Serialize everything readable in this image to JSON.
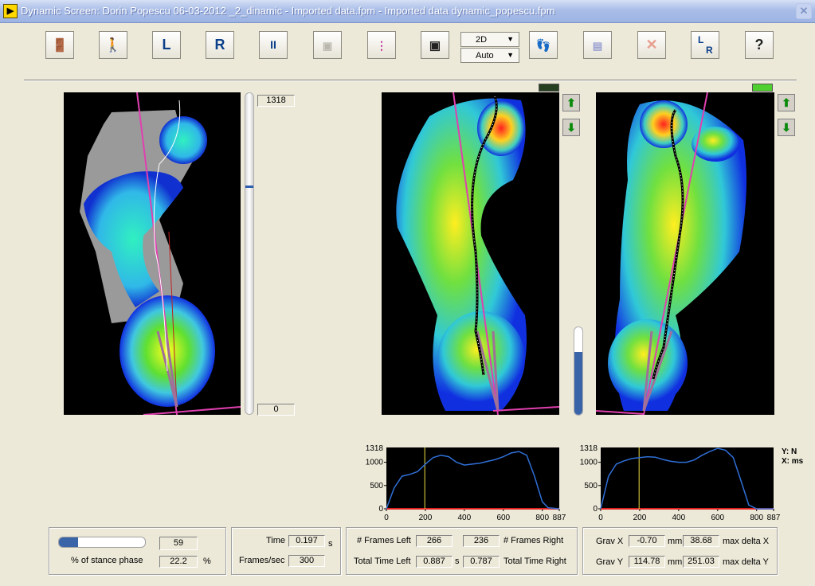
{
  "window": {
    "title": "Dynamic Screen: Dorin Popescu 06-03-2012 _2_dinamic - Imported data.fpm - Imported data dynamic_popescu.fpm"
  },
  "toolbar": {
    "exit_icon": "exit-door-icon",
    "walk_icon": "walking-person-icon",
    "left_label": "L",
    "right_label": "R",
    "pause_label": "II",
    "view_mode": "2D",
    "scale_mode": "Auto",
    "lr_label_l": "L",
    "lr_label_r": "R",
    "help_label": "?"
  },
  "slider": {
    "max_value": "1318",
    "min_value": "0"
  },
  "charts": {
    "left": {
      "ymax_label": "1318",
      "ticks_y": [
        "1000",
        "500",
        "0"
      ],
      "ticks_x": [
        "0",
        "200",
        "400",
        "600",
        "800",
        "887"
      ]
    },
    "right": {
      "ymax_label": "1318",
      "ticks_y": [
        "1000",
        "500",
        "0"
      ],
      "ticks_x": [
        "0",
        "200",
        "400",
        "600",
        "800",
        "887"
      ]
    },
    "axis_legend": {
      "y": "Y: N",
      "x": "X: ms"
    }
  },
  "chart_data": [
    {
      "type": "line",
      "series": [
        {
          "x": [
            0,
            40,
            80,
            120,
            160,
            200,
            240,
            280,
            320,
            360,
            400,
            440,
            480,
            520,
            560,
            600,
            640,
            680,
            720,
            760,
            800,
            830,
            887
          ],
          "y": [
            0,
            450,
            700,
            740,
            800,
            960,
            1100,
            1150,
            1120,
            1000,
            940,
            960,
            980,
            1020,
            1060,
            1120,
            1200,
            1230,
            1150,
            700,
            150,
            20,
            0
          ]
        }
      ],
      "xlim": [
        0,
        887
      ],
      "ylim": [
        0,
        1318
      ],
      "cursor_x": 197
    },
    {
      "type": "line",
      "series": [
        {
          "x": [
            0,
            40,
            80,
            120,
            160,
            200,
            240,
            280,
            320,
            360,
            400,
            440,
            480,
            520,
            560,
            600,
            640,
            680,
            720,
            760,
            800,
            887
          ],
          "y": [
            0,
            700,
            960,
            1030,
            1080,
            1100,
            1120,
            1110,
            1060,
            1020,
            1000,
            1000,
            1050,
            1150,
            1230,
            1300,
            1260,
            1100,
            600,
            80,
            0,
            0
          ]
        }
      ],
      "xlim": [
        0,
        887
      ],
      "ylim": [
        0,
        1318
      ],
      "cursor_x": 197
    }
  ],
  "stance": {
    "progress_fraction": 0.22,
    "frame_value": "59",
    "label": "% of stance phase",
    "percent_value": "22.2",
    "percent_unit": "%"
  },
  "timing": {
    "time_label": "Time",
    "time_value": "0.197",
    "time_unit": "s",
    "fps_label": "Frames/sec",
    "fps_value": "300"
  },
  "frames": {
    "left_label": "# Frames Left",
    "left_value": "266",
    "right_value": "236",
    "right_label": "# Frames Right",
    "total_left_label": "Total Time Left",
    "total_left_value": "0.887",
    "total_left_unit": "s",
    "total_right_value": "0.787",
    "total_right_label": "Total Time Right"
  },
  "grav": {
    "x_label": "Grav X",
    "x_value": "-0.70",
    "x_unit": "mm",
    "x_max": "38.68",
    "x_max_label": "max delta X",
    "y_label": "Grav Y",
    "y_value": "114.78",
    "y_unit": "mm",
    "y_max": "251.03",
    "y_max_label": "max delta Y"
  },
  "colors": {
    "chart_line": "#2f6fd6",
    "cursor": "#f0e040",
    "baseline": "#e02020",
    "pressure_axis": "#e040b0",
    "cop_trace": "#ffffff"
  }
}
